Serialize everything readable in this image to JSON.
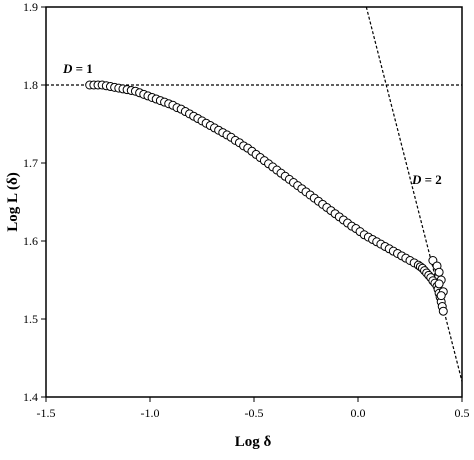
{
  "chart_data": {
    "type": "scatter",
    "xlabel": "Log δ",
    "ylabel": "Log L (δ)",
    "xlim": [
      -1.5,
      0.5
    ],
    "ylim": [
      1.4,
      1.9
    ],
    "x_ticks": [
      "-1.5",
      "-1.0",
      "-0.5",
      "0.0",
      "0.5"
    ],
    "y_ticks": [
      "1.4",
      "1.5",
      "1.6",
      "1.7",
      "1.8",
      "1.9"
    ],
    "grid": false,
    "reference_lines": [
      {
        "label_var": "D",
        "label_eq": " = 1",
        "x1": -1.5,
        "y1": 1.8,
        "x2": 0.5,
        "y2": 1.8
      },
      {
        "label_var": "D",
        "label_eq": " = 2",
        "x1": 0.04,
        "y1": 1.9,
        "x2": 0.5,
        "y2": 1.42
      }
    ],
    "series": [
      {
        "marker": "open-circle",
        "points": [
          [
            -1.29,
            1.8
          ],
          [
            -1.27,
            1.8
          ],
          [
            -1.25,
            1.8
          ],
          [
            -1.23,
            1.8
          ],
          [
            -1.21,
            1.799
          ],
          [
            -1.19,
            1.798
          ],
          [
            -1.17,
            1.797
          ],
          [
            -1.15,
            1.796
          ],
          [
            -1.13,
            1.795
          ],
          [
            -1.11,
            1.794
          ],
          [
            -1.09,
            1.793
          ],
          [
            -1.07,
            1.792
          ],
          [
            -1.05,
            1.79
          ],
          [
            -1.03,
            1.788
          ],
          [
            -1.01,
            1.786
          ],
          [
            -0.99,
            1.784
          ],
          [
            -0.97,
            1.782
          ],
          [
            -0.95,
            1.78
          ],
          [
            -0.93,
            1.778
          ],
          [
            -0.91,
            1.776
          ],
          [
            -0.89,
            1.774
          ],
          [
            -0.87,
            1.771
          ],
          [
            -0.85,
            1.769
          ],
          [
            -0.83,
            1.766
          ],
          [
            -0.81,
            1.763
          ],
          [
            -0.79,
            1.76
          ],
          [
            -0.77,
            1.757
          ],
          [
            -0.75,
            1.754
          ],
          [
            -0.73,
            1.751
          ],
          [
            -0.71,
            1.748
          ],
          [
            -0.69,
            1.745
          ],
          [
            -0.67,
            1.742
          ],
          [
            -0.65,
            1.739
          ],
          [
            -0.63,
            1.736
          ],
          [
            -0.61,
            1.733
          ],
          [
            -0.59,
            1.729
          ],
          [
            -0.57,
            1.726
          ],
          [
            -0.55,
            1.722
          ],
          [
            -0.53,
            1.719
          ],
          [
            -0.51,
            1.715
          ],
          [
            -0.49,
            1.711
          ],
          [
            -0.47,
            1.707
          ],
          [
            -0.45,
            1.703
          ],
          [
            -0.43,
            1.699
          ],
          [
            -0.41,
            1.695
          ],
          [
            -0.39,
            1.691
          ],
          [
            -0.37,
            1.687
          ],
          [
            -0.35,
            1.683
          ],
          [
            -0.33,
            1.679
          ],
          [
            -0.31,
            1.675
          ],
          [
            -0.29,
            1.671
          ],
          [
            -0.27,
            1.667
          ],
          [
            -0.25,
            1.663
          ],
          [
            -0.23,
            1.659
          ],
          [
            -0.21,
            1.655
          ],
          [
            -0.19,
            1.651
          ],
          [
            -0.17,
            1.647
          ],
          [
            -0.15,
            1.643
          ],
          [
            -0.13,
            1.639
          ],
          [
            -0.11,
            1.635
          ],
          [
            -0.09,
            1.631
          ],
          [
            -0.07,
            1.627
          ],
          [
            -0.05,
            1.623
          ],
          [
            -0.03,
            1.619
          ],
          [
            -0.01,
            1.616
          ],
          [
            0.01,
            1.612
          ],
          [
            0.03,
            1.608
          ],
          [
            0.05,
            1.605
          ],
          [
            0.07,
            1.602
          ],
          [
            0.09,
            1.599
          ],
          [
            0.11,
            1.596
          ],
          [
            0.13,
            1.593
          ],
          [
            0.15,
            1.59
          ],
          [
            0.17,
            1.587
          ],
          [
            0.19,
            1.584
          ],
          [
            0.21,
            1.581
          ],
          [
            0.23,
            1.578
          ],
          [
            0.25,
            1.575
          ],
          [
            0.27,
            1.572
          ],
          [
            0.29,
            1.569
          ],
          [
            0.3,
            1.567
          ],
          [
            0.31,
            1.565
          ],
          [
            0.32,
            1.562
          ],
          [
            0.33,
            1.559
          ],
          [
            0.34,
            1.556
          ],
          [
            0.35,
            1.553
          ],
          [
            0.36,
            1.549
          ],
          [
            0.37,
            1.546
          ],
          [
            0.38,
            1.542
          ],
          [
            0.385,
            1.538
          ],
          [
            0.39,
            1.533
          ],
          [
            0.395,
            1.528
          ],
          [
            0.4,
            1.522
          ],
          [
            0.405,
            1.516
          ],
          [
            0.41,
            1.51
          ],
          [
            0.36,
            1.575
          ],
          [
            0.38,
            1.568
          ],
          [
            0.39,
            1.56
          ],
          [
            0.4,
            1.55
          ],
          [
            0.39,
            1.545
          ],
          [
            0.41,
            1.535
          ],
          [
            0.4,
            1.53
          ]
        ]
      }
    ]
  }
}
